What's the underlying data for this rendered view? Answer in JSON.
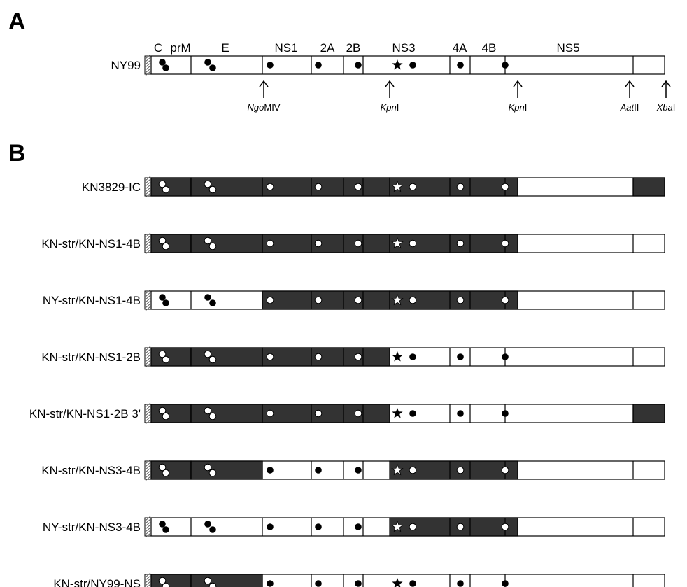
{
  "panel_a_label": "A",
  "panel_b_label": "B",
  "regions": [
    "C",
    "prM",
    "E",
    "NS1",
    "2A",
    "2B",
    "NS3",
    "4A",
    "4B",
    "NS5"
  ],
  "sites": [
    {
      "italic": "Ngo",
      "rest": "MIV"
    },
    {
      "italic": "Kpn",
      "rest": "I"
    },
    {
      "italic": "Kpn",
      "rest": "I"
    },
    {
      "italic": "Aat",
      "rest": "II"
    },
    {
      "italic": "Xba",
      "rest": "I"
    }
  ],
  "reference": {
    "label": "NY99"
  },
  "constructs": [
    {
      "label": "KN3829-IC",
      "dark": [
        "capsid",
        "structural",
        "ns1_2b",
        "ns3_4b",
        "utr3"
      ]
    },
    {
      "label": "KN-str/KN-NS1-4B",
      "dark": [
        "capsid",
        "structural",
        "ns1_2b",
        "ns3_4b"
      ]
    },
    {
      "label": "NY-str/KN-NS1-4B",
      "dark": [
        "ns1_2b",
        "ns3_4b"
      ]
    },
    {
      "label": "KN-str/KN-NS1-2B",
      "dark": [
        "capsid",
        "structural",
        "ns1_2b"
      ]
    },
    {
      "label": "KN-str/KN-NS1-2B 3'",
      "dark": [
        "capsid",
        "structural",
        "ns1_2b",
        "utr3"
      ]
    },
    {
      "label": "KN-str/KN-NS3-4B",
      "dark": [
        "capsid",
        "structural",
        "ns3_4b"
      ]
    },
    {
      "label": "NY-str/KN-NS3-4B",
      "dark": [
        "ns3_4b"
      ]
    },
    {
      "label": "KN-str/NY99-NS",
      "dark": [
        "capsid",
        "structural"
      ]
    }
  ],
  "colors": {
    "dark_fill": "#333333",
    "light_fill": "#ffffff",
    "stroke": "#000000"
  }
}
